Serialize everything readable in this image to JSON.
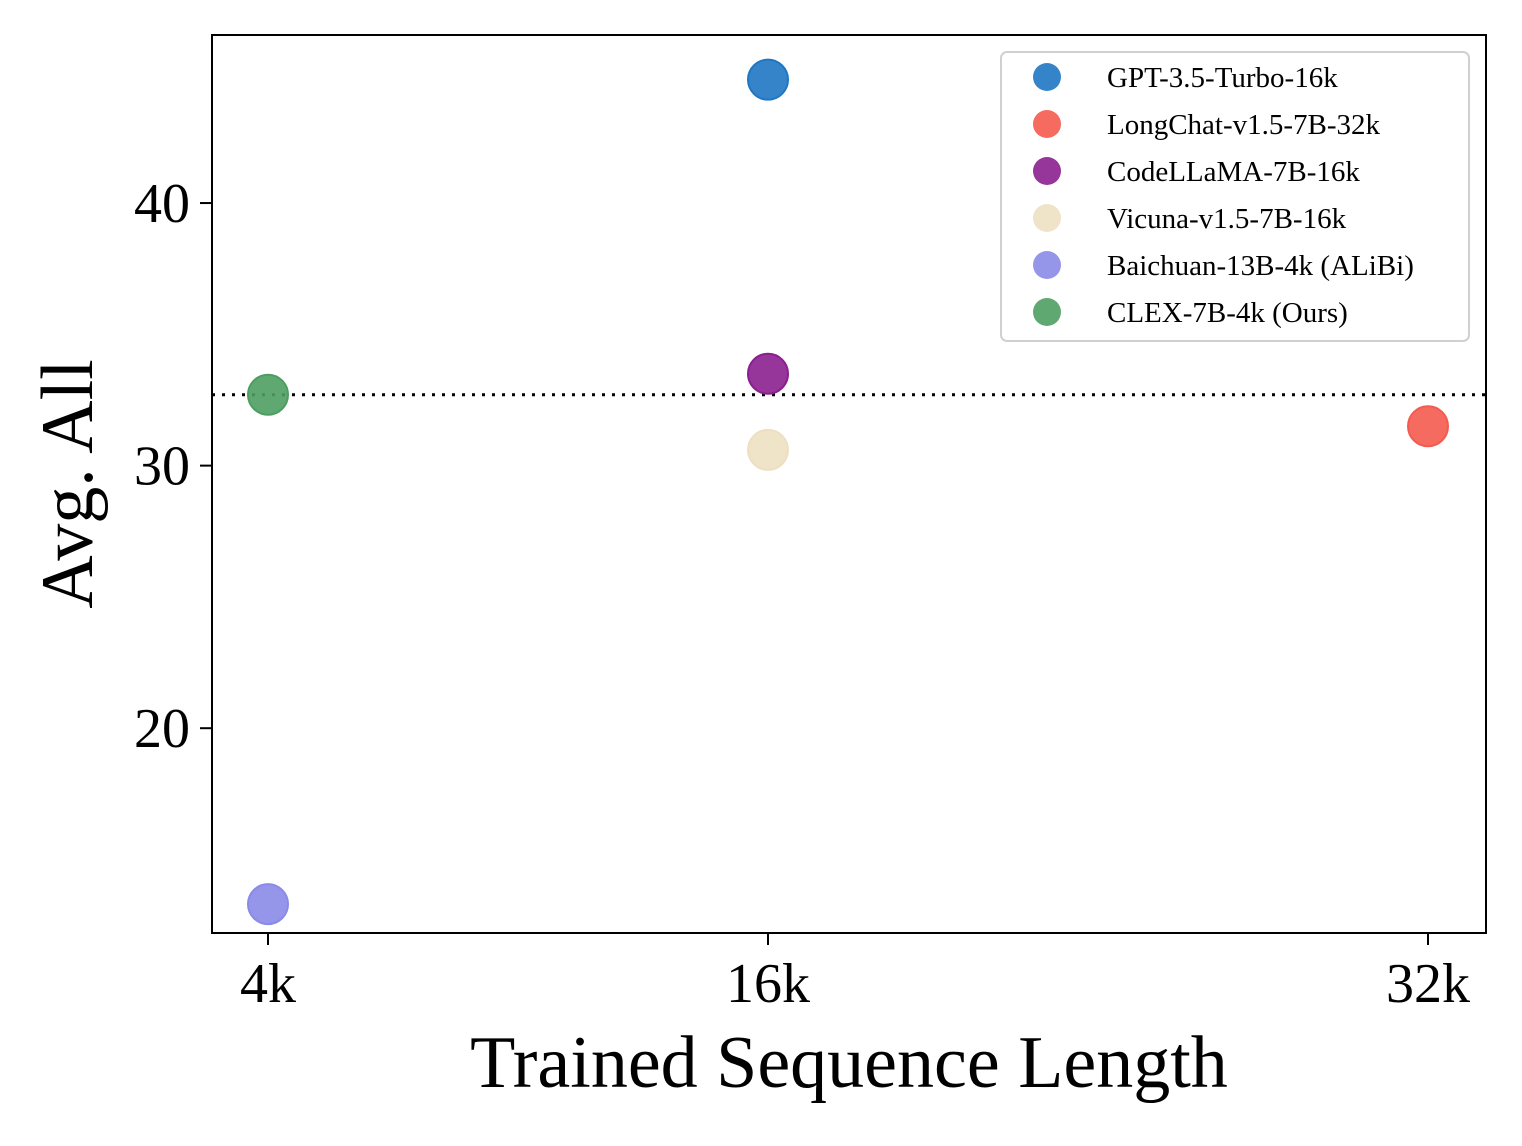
{
  "chart_data": {
    "type": "scatter",
    "title": "",
    "xlabel": "Trained Sequence Length",
    "ylabel": "Avg. All",
    "x_categories": [
      "4k",
      "16k",
      "32k"
    ],
    "y_ticks": [
      20,
      30,
      40
    ],
    "y_tick_labels": [
      "20",
      "30",
      "40"
    ],
    "ylim": [
      12.2,
      46.4
    ],
    "grid": false,
    "legend_position": "top-right",
    "reference_line": {
      "y": 32.7,
      "style": "dotted",
      "color": "#000000"
    },
    "series": [
      {
        "name": "GPT-3.5-Turbo-16k",
        "color": "#1f77c4",
        "points": [
          {
            "x": "16k",
            "y": 44.7
          }
        ]
      },
      {
        "name": "LongChat-v1.5-7B-32k",
        "color": "#f45b4f",
        "points": [
          {
            "x": "32k",
            "y": 31.5
          }
        ]
      },
      {
        "name": "CodeLLaMA-7B-16k",
        "color": "#8b1f8f",
        "points": [
          {
            "x": "16k",
            "y": 33.5
          }
        ]
      },
      {
        "name": "Vicuna-v1.5-7B-16k",
        "color": "#ede0c2",
        "points": [
          {
            "x": "16k",
            "y": 30.6
          }
        ]
      },
      {
        "name": "Baichuan-13B-4k (ALiBi)",
        "color": "#8a8ae8",
        "points": [
          {
            "x": "4k",
            "y": 13.3
          }
        ]
      },
      {
        "name": "CLEX-7B-4k (Ours)",
        "color": "#4e9e62",
        "points": [
          {
            "x": "4k",
            "y": 32.7
          }
        ]
      }
    ]
  }
}
